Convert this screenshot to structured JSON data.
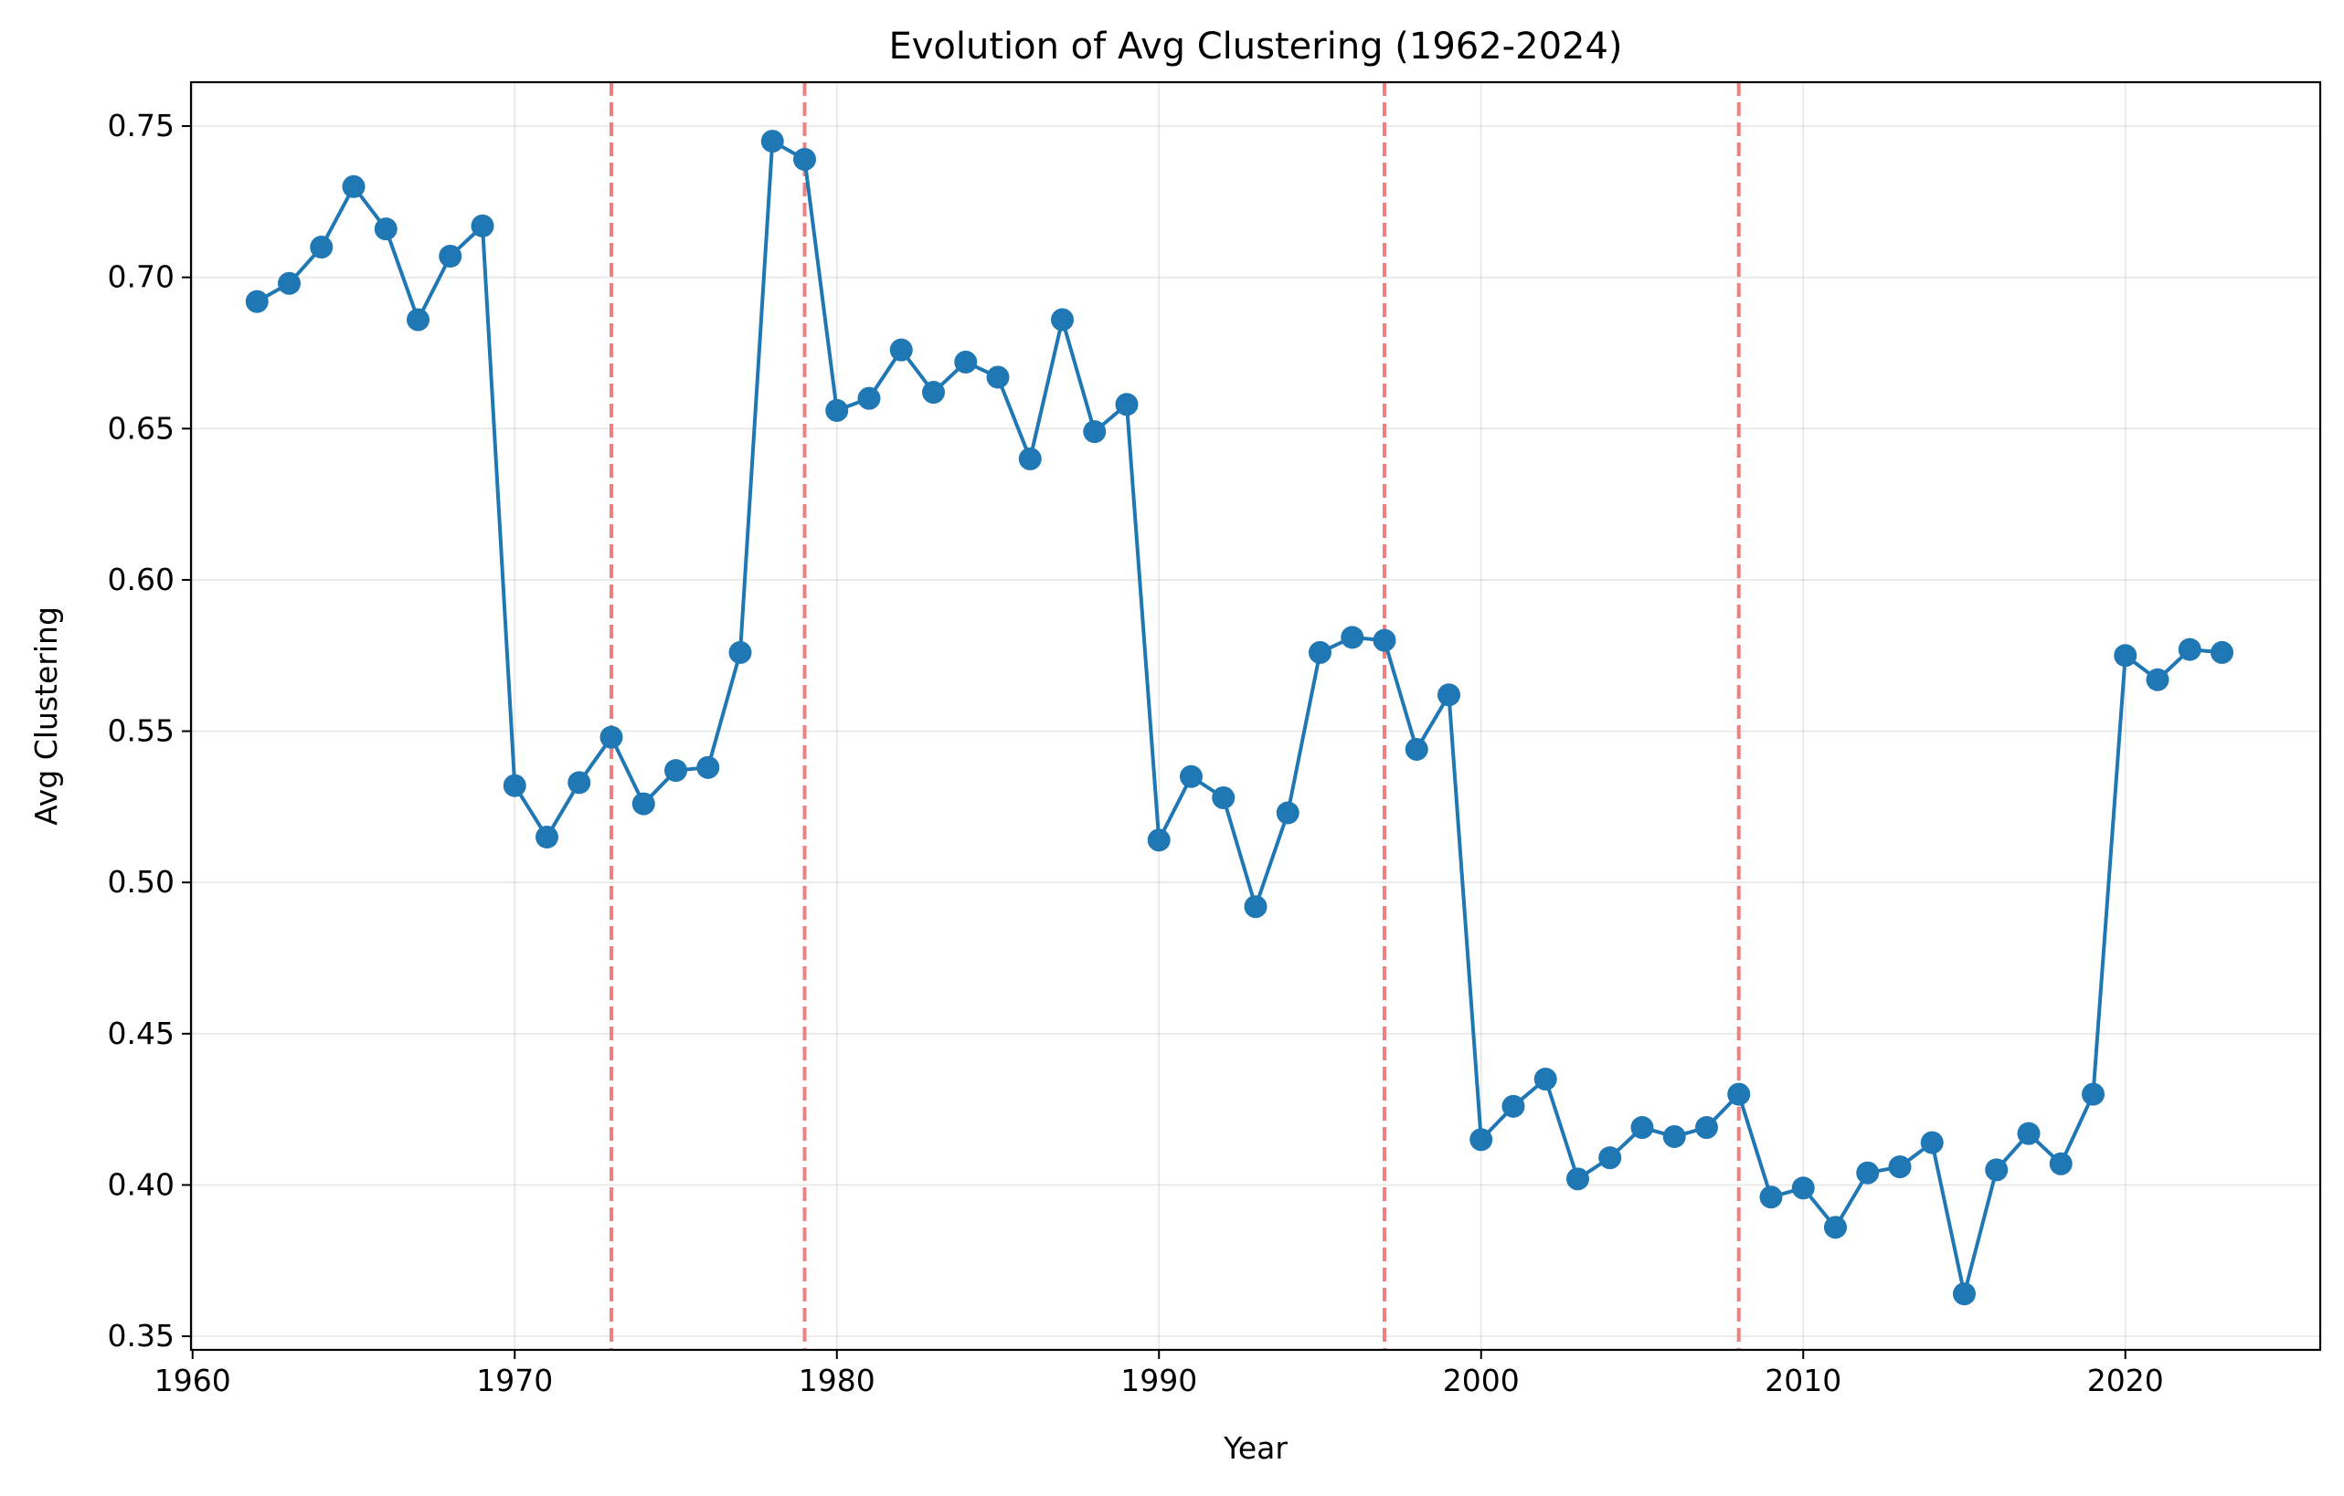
{
  "chart_data": {
    "type": "line",
    "title": "Evolution of Avg Clustering (1962-2024)",
    "xlabel": "Year",
    "ylabel": "Avg Clustering",
    "xlim": [
      1959.95,
      2026.05
    ],
    "ylim": [
      0.3455,
      0.7645
    ],
    "x_ticks": [
      1960,
      1970,
      1980,
      1990,
      2000,
      2010,
      2020
    ],
    "y_ticks": [
      0.35,
      0.4,
      0.45,
      0.5,
      0.55,
      0.6,
      0.65,
      0.7,
      0.75
    ],
    "grid": true,
    "line_color": "#1f77b4",
    "vline_color": "#f08080",
    "vlines": [
      1973,
      1979,
      1997,
      2008
    ],
    "series": [
      {
        "x": [
          1962,
          1963,
          1964,
          1965,
          1966,
          1967,
          1968,
          1969,
          1970,
          1971,
          1972,
          1973,
          1974,
          1975,
          1976,
          1977,
          1978,
          1979,
          1980,
          1981,
          1982,
          1983,
          1984,
          1985,
          1986,
          1987,
          1988,
          1989,
          1990,
          1991,
          1992,
          1993,
          1994,
          1995,
          1996,
          1997,
          1998,
          1999,
          2000,
          2001,
          2002,
          2003,
          2004,
          2005,
          2006,
          2007,
          2008,
          2009,
          2010,
          2011,
          2012,
          2013,
          2014,
          2015,
          2016,
          2017,
          2018,
          2019,
          2020,
          2021,
          2022,
          2023
        ],
        "values": [
          0.692,
          0.698,
          0.71,
          0.73,
          0.716,
          0.686,
          0.707,
          0.717,
          0.532,
          0.515,
          0.533,
          0.548,
          0.526,
          0.537,
          0.538,
          0.576,
          0.745,
          0.739,
          0.656,
          0.66,
          0.676,
          0.662,
          0.672,
          0.667,
          0.64,
          0.686,
          0.649,
          0.658,
          0.514,
          0.535,
          0.528,
          0.492,
          0.523,
          0.576,
          0.581,
          0.58,
          0.544,
          0.562,
          0.415,
          0.426,
          0.435,
          0.402,
          0.409,
          0.419,
          0.416,
          0.419,
          0.43,
          0.396,
          0.399,
          0.386,
          0.404,
          0.406,
          0.414,
          0.364,
          0.405,
          0.417,
          0.407,
          0.43,
          0.575,
          0.567,
          0.577,
          0.576
        ]
      }
    ]
  }
}
